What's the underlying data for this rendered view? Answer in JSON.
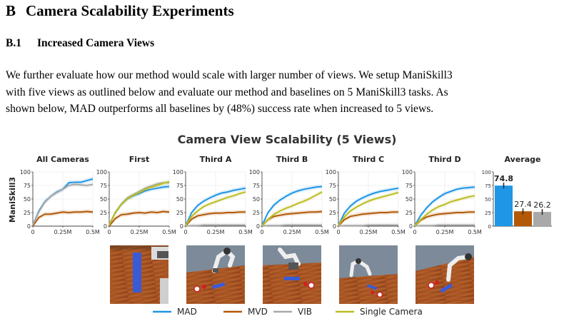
{
  "section": {
    "number": "B",
    "title": "Camera Scalability Experiments"
  },
  "subsection": {
    "number": "B.1",
    "title": "Increased Camera Views"
  },
  "paragraph": [
    "We further evaluate how our method would scale with larger number of views. We setup ManiSkill3",
    "with five views as outlined below and evaluate our method and baselines on 5 ManiSkill3 tasks. As",
    "shown below, MAD outperforms all baselines by (48%) success rate when increased to 5 views."
  ],
  "figure": {
    "title": "Camera View Scalability (5 Views)",
    "row_label": "ManiSkill3",
    "colors": {
      "MAD": "#1f96e6",
      "MVD": "#b35806",
      "VIB": "#a9a9a9",
      "Single Camera": "#bcbd22"
    },
    "legend": [
      "MAD",
      "MVD",
      "VIB",
      "Single Camera"
    ]
  },
  "chart_data": [
    {
      "type": "line",
      "title": "All Cameras",
      "ylabel": "ManiSkill3",
      "x": [
        0,
        0.05,
        0.1,
        0.15,
        0.2,
        0.25,
        0.3,
        0.35,
        0.4,
        0.45,
        0.5
      ],
      "xticks": [
        "0",
        "0.25M",
        "0.5M"
      ],
      "ylim": [
        0,
        100
      ],
      "yticks": [
        0,
        25,
        50,
        75,
        100
      ],
      "series": [
        {
          "name": "MAD",
          "values": [
            2,
            28,
            45,
            55,
            63,
            68,
            80,
            81,
            81,
            84,
            87
          ]
        },
        {
          "name": "MVD",
          "values": [
            0,
            16,
            22,
            22,
            24,
            26,
            25,
            26,
            26,
            27,
            26
          ]
        },
        {
          "name": "VIB",
          "values": [
            2,
            26,
            44,
            55,
            62,
            68,
            75,
            77,
            76,
            75,
            77
          ]
        }
      ]
    },
    {
      "type": "line",
      "title": "First",
      "x": [
        0,
        0.05,
        0.1,
        0.15,
        0.2,
        0.25,
        0.3,
        0.35,
        0.4,
        0.45,
        0.5
      ],
      "xticks": [
        "0",
        "0.25M",
        "0.5M"
      ],
      "ylim": [
        0,
        100
      ],
      "yticks": [
        0,
        25,
        50,
        75,
        100
      ],
      "series": [
        {
          "name": "MAD",
          "values": [
            2,
            25,
            40,
            50,
            56,
            60,
            65,
            68,
            70,
            72,
            73
          ]
        },
        {
          "name": "MVD",
          "values": [
            0,
            14,
            21,
            22,
            24,
            25,
            24,
            26,
            25,
            27,
            26
          ]
        },
        {
          "name": "VIB",
          "values": [
            2,
            24,
            40,
            52,
            58,
            64,
            70,
            74,
            78,
            80,
            80
          ]
        },
        {
          "name": "Single Camera",
          "values": [
            2,
            25,
            40,
            50,
            57,
            62,
            68,
            72,
            75,
            79,
            82
          ]
        }
      ]
    },
    {
      "type": "line",
      "title": "Third A",
      "x": [
        0,
        0.05,
        0.1,
        0.15,
        0.2,
        0.25,
        0.3,
        0.35,
        0.4,
        0.45,
        0.5
      ],
      "xticks": [
        "0",
        "0.25M",
        "0.5M"
      ],
      "ylim": [
        0,
        100
      ],
      "yticks": [
        0,
        25,
        50,
        75,
        100
      ],
      "series": [
        {
          "name": "MAD",
          "values": [
            1,
            25,
            38,
            46,
            52,
            57,
            61,
            63,
            66,
            68,
            70
          ]
        },
        {
          "name": "MVD",
          "values": [
            0,
            13,
            19,
            21,
            23,
            24,
            24,
            25,
            25,
            26,
            26
          ]
        },
        {
          "name": "VIB",
          "values": [
            0,
            1,
            1,
            2,
            2,
            2,
            2,
            2,
            2,
            2,
            2
          ]
        },
        {
          "name": "Single Camera",
          "values": [
            1,
            18,
            28,
            36,
            41,
            45,
            49,
            53,
            56,
            60,
            63
          ]
        }
      ]
    },
    {
      "type": "line",
      "title": "Third B",
      "x": [
        0,
        0.05,
        0.1,
        0.15,
        0.2,
        0.25,
        0.3,
        0.35,
        0.4,
        0.45,
        0.5
      ],
      "xticks": [
        "0",
        "0.25M",
        "0.5M"
      ],
      "ylim": [
        0,
        100
      ],
      "yticks": [
        0,
        25,
        50,
        75,
        100
      ],
      "series": [
        {
          "name": "MAD",
          "values": [
            1,
            25,
            39,
            48,
            55,
            61,
            65,
            68,
            70,
            72,
            73
          ]
        },
        {
          "name": "MVD",
          "values": [
            0,
            12,
            18,
            20,
            22,
            23,
            24,
            25,
            26,
            26,
            27
          ]
        },
        {
          "name": "VIB",
          "values": [
            0,
            1,
            1,
            1,
            2,
            2,
            2,
            2,
            2,
            2,
            2
          ]
        },
        {
          "name": "Single Camera",
          "values": [
            1,
            12,
            22,
            28,
            33,
            37,
            42,
            46,
            51,
            57,
            63
          ]
        }
      ]
    },
    {
      "type": "line",
      "title": "Third C",
      "x": [
        0,
        0.05,
        0.1,
        0.15,
        0.2,
        0.25,
        0.3,
        0.35,
        0.4,
        0.45,
        0.5
      ],
      "xticks": [
        "0",
        "0.25M",
        "0.5M"
      ],
      "ylim": [
        0,
        100
      ],
      "yticks": [
        0,
        25,
        50,
        75,
        100
      ],
      "series": [
        {
          "name": "MAD",
          "values": [
            1,
            24,
            37,
            46,
            52,
            57,
            61,
            64,
            66,
            68,
            70
          ]
        },
        {
          "name": "MVD",
          "values": [
            0,
            12,
            18,
            20,
            22,
            23,
            24,
            25,
            25,
            26,
            26
          ]
        },
        {
          "name": "VIB",
          "values": [
            0,
            1,
            1,
            1,
            1,
            2,
            2,
            2,
            2,
            2,
            2
          ]
        },
        {
          "name": "Single Camera",
          "values": [
            1,
            17,
            28,
            35,
            41,
            46,
            50,
            53,
            56,
            59,
            62
          ]
        }
      ]
    },
    {
      "type": "line",
      "title": "Third D",
      "x": [
        0,
        0.05,
        0.1,
        0.15,
        0.2,
        0.25,
        0.3,
        0.35,
        0.4,
        0.45,
        0.5
      ],
      "xticks": [
        "0",
        "0.25M",
        "0.5M"
      ],
      "ylim": [
        0,
        100
      ],
      "yticks": [
        0,
        25,
        50,
        75,
        100
      ],
      "series": [
        {
          "name": "MAD",
          "values": [
            1,
            20,
            34,
            45,
            53,
            60,
            64,
            68,
            70,
            71,
            72
          ]
        },
        {
          "name": "MVD",
          "values": [
            0,
            11,
            17,
            20,
            22,
            23,
            24,
            25,
            25,
            26,
            26
          ]
        },
        {
          "name": "VIB",
          "values": [
            0,
            1,
            1,
            1,
            2,
            2,
            2,
            2,
            2,
            2,
            2
          ]
        },
        {
          "name": "Single Camera",
          "values": [
            1,
            12,
            22,
            30,
            36,
            40,
            45,
            48,
            51,
            54,
            56
          ]
        }
      ]
    },
    {
      "type": "bar",
      "title": "Average",
      "categories": [
        "MAD",
        "MVD",
        "VIB"
      ],
      "values": [
        74.8,
        27.4,
        26.2
      ],
      "labels": [
        "74.8",
        "27.4",
        "26.2"
      ],
      "ylim": [
        0,
        100
      ],
      "yticks": [
        0,
        25,
        50,
        75,
        100
      ]
    }
  ],
  "camera_images": [
    "First",
    "Third A",
    "Third B",
    "Third C",
    "Third D"
  ]
}
